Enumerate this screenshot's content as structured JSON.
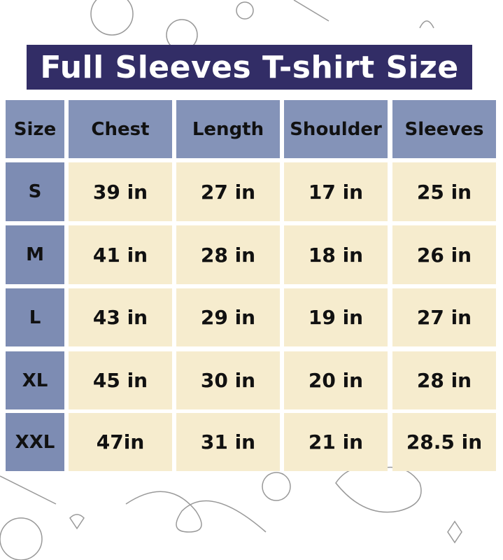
{
  "title": "Full Sleeves T-shirt Size",
  "colors": {
    "title_bg": "#322d66",
    "header_bg": "#8493b8",
    "size_bg": "#7d8cb3",
    "value_bg": "#f6ecce"
  },
  "table": {
    "headers": [
      "Size",
      "Chest",
      "Length",
      "Shoulder",
      "Sleeves"
    ],
    "rows": [
      [
        "S",
        "39 in",
        "27 in",
        "17 in",
        "25 in"
      ],
      [
        "M",
        "41 in",
        "28 in",
        "18 in",
        "26 in"
      ],
      [
        "L",
        "43 in",
        "29 in",
        "19 in",
        "27 in"
      ],
      [
        "XL",
        "45 in",
        "30 in",
        "20 in",
        "28 in"
      ],
      [
        "XXL",
        "47in",
        "31 in",
        "21 in",
        "28.5 in"
      ]
    ]
  }
}
